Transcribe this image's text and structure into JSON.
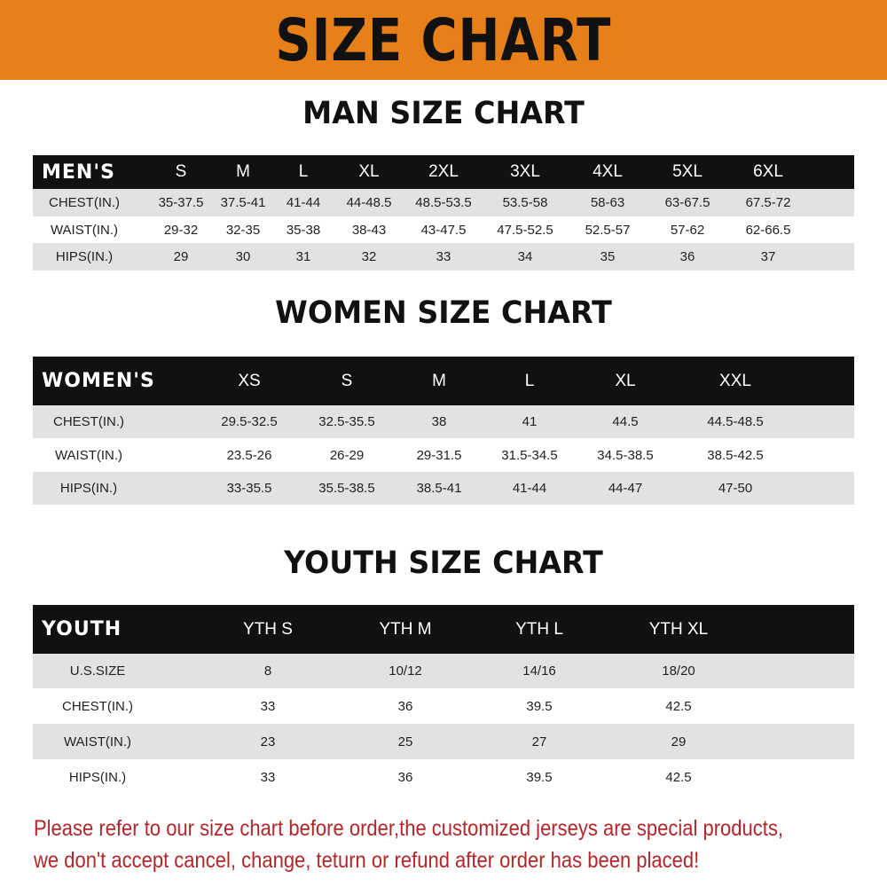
{
  "banner": {
    "title": "SIZE CHART",
    "color": "#e8801a"
  },
  "men": {
    "title": "MAN SIZE CHART",
    "header": [
      "MEN'S",
      "S",
      "M",
      "L",
      "XL",
      "2XL",
      "3XL",
      "4XL",
      "5XL",
      "6XL"
    ],
    "rows": [
      [
        "CHEST(IN.)",
        "35-37.5",
        "37.5-41",
        "41-44",
        "44-48.5",
        "48.5-53.5",
        "53.5-58",
        "58-63",
        "63-67.5",
        "67.5-72"
      ],
      [
        "WAIST(IN.)",
        "29-32",
        "32-35",
        "35-38",
        "38-43",
        "43-47.5",
        "47.5-52.5",
        "52.5-57",
        "57-62",
        "62-66.5"
      ],
      [
        "HIPS(IN.)",
        "29",
        "30",
        "31",
        "32",
        "33",
        "34",
        "35",
        "36",
        "37"
      ]
    ]
  },
  "women": {
    "title": "WOMEN SIZE CHART",
    "header": [
      "WOMEN'S",
      "XS",
      "S",
      "M",
      "L",
      "XL",
      "XXL"
    ],
    "rows": [
      [
        "CHEST(IN.)",
        "29.5-32.5",
        "32.5-35.5",
        "38",
        "41",
        "44.5",
        "44.5-48.5"
      ],
      [
        "WAIST(IN.)",
        "23.5-26",
        "26-29",
        "29-31.5",
        "31.5-34.5",
        "34.5-38.5",
        "38.5-42.5"
      ],
      [
        "HIPS(IN.)",
        "33-35.5",
        "35.5-38.5",
        "38.5-41",
        "41-44",
        "44-47",
        "47-50"
      ]
    ]
  },
  "youth": {
    "title": "YOUTH SIZE CHART",
    "header": [
      "YOUTH",
      "YTH S",
      "YTH M",
      "YTH L",
      "YTH XL"
    ],
    "rows": [
      [
        "U.S.SIZE",
        "8",
        "10/12",
        "14/16",
        "18/20"
      ],
      [
        "CHEST(IN.)",
        "33",
        "36",
        "39.5",
        "42.5"
      ],
      [
        "WAIST(IN.)",
        "23",
        "25",
        "27",
        "29"
      ],
      [
        "HIPS(IN.)",
        "33",
        "36",
        "39.5",
        "42.5"
      ]
    ]
  },
  "notice": {
    "line1": "Please refer to our size chart before order,the customized jerseys are special products,",
    "line2": "we don't accept cancel, change, teturn or refund after order has been placed!",
    "color": "#b3262a"
  }
}
